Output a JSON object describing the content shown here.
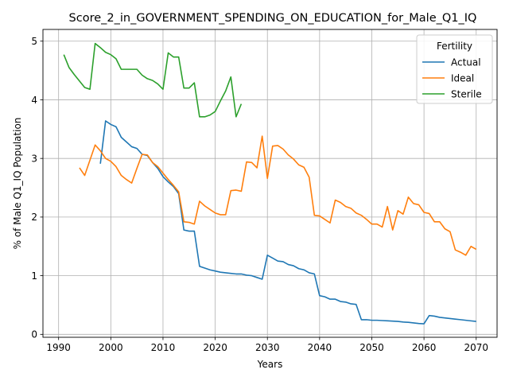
{
  "chart_data": {
    "type": "line",
    "title": "Score_2_in_GOVERNMENT_SPENDING_ON_EDUCATION_for_Male_Q1_IQ",
    "xlabel": "Years",
    "ylabel": "% of Male Q1_IQ Population",
    "xlim": [
      1987,
      2074
    ],
    "ylim": [
      -0.05,
      5.2
    ],
    "xticks": [
      1990,
      2000,
      2010,
      2020,
      2030,
      2040,
      2050,
      2060,
      2070
    ],
    "yticks": [
      0,
      1,
      2,
      3,
      4,
      5
    ],
    "grid": true,
    "legend": {
      "title": "Fertility",
      "position": "top-right"
    },
    "series": [
      {
        "name": "Actual",
        "color": "#1f77b4",
        "x": [
          1998,
          1999,
          2000,
          2001,
          2002,
          2003,
          2004,
          2005,
          2006,
          2007,
          2008,
          2009,
          2010,
          2011,
          2012,
          2013,
          2014,
          2015,
          2016,
          2017,
          2018,
          2019,
          2020,
          2021,
          2022,
          2023,
          2024,
          2025,
          2026,
          2027,
          2028,
          2029,
          2030,
          2031,
          2032,
          2033,
          2034,
          2035,
          2036,
          2037,
          2038,
          2039,
          2040,
          2041,
          2042,
          2043,
          2044,
          2045,
          2046,
          2047,
          2048,
          2049,
          2050,
          2051,
          2052,
          2053,
          2054,
          2055,
          2056,
          2057,
          2058,
          2059,
          2060,
          2061,
          2062,
          2063,
          2064,
          2065,
          2066,
          2067,
          2068,
          2069,
          2070
        ],
        "y": [
          2.91,
          3.64,
          3.58,
          3.54,
          3.36,
          3.28,
          3.2,
          3.17,
          3.07,
          3.05,
          2.93,
          2.83,
          2.69,
          2.6,
          2.52,
          2.4,
          1.78,
          1.76,
          1.76,
          1.16,
          1.13,
          1.1,
          1.08,
          1.06,
          1.05,
          1.04,
          1.03,
          1.03,
          1.01,
          1.0,
          0.97,
          0.94,
          1.35,
          1.3,
          1.25,
          1.24,
          1.19,
          1.17,
          1.12,
          1.1,
          1.05,
          1.03,
          0.66,
          0.64,
          0.6,
          0.6,
          0.56,
          0.55,
          0.52,
          0.51,
          0.25,
          0.25,
          0.24,
          0.24,
          0.235,
          0.23,
          0.225,
          0.22,
          0.21,
          0.205,
          0.195,
          0.185,
          0.18,
          0.32,
          0.31,
          0.29,
          0.28,
          0.27,
          0.26,
          0.25,
          0.24,
          0.23,
          0.22
        ]
      },
      {
        "name": "Ideal",
        "color": "#ff7f0e",
        "x": [
          1994,
          1995,
          1996,
          1997,
          1998,
          1999,
          2000,
          2001,
          2002,
          2003,
          2004,
          2005,
          2006,
          2007,
          2008,
          2009,
          2010,
          2011,
          2012,
          2013,
          2014,
          2015,
          2016,
          2017,
          2018,
          2019,
          2020,
          2021,
          2022,
          2023,
          2024,
          2025,
          2026,
          2027,
          2028,
          2029,
          2030,
          2031,
          2032,
          2033,
          2034,
          2035,
          2036,
          2037,
          2038,
          2039,
          2040,
          2041,
          2042,
          2043,
          2044,
          2045,
          2046,
          2047,
          2048,
          2049,
          2050,
          2051,
          2052,
          2053,
          2054,
          2055,
          2056,
          2057,
          2058,
          2059,
          2060,
          2061,
          2062,
          2063,
          2064,
          2065,
          2066,
          2067,
          2068,
          2069,
          2070
        ],
        "y": [
          2.84,
          2.71,
          2.97,
          3.23,
          3.13,
          3.0,
          2.95,
          2.86,
          2.71,
          2.64,
          2.58,
          2.83,
          3.07,
          3.06,
          2.93,
          2.86,
          2.75,
          2.64,
          2.54,
          2.43,
          1.92,
          1.91,
          1.88,
          2.27,
          2.19,
          2.13,
          2.07,
          2.04,
          2.04,
          2.45,
          2.46,
          2.44,
          2.94,
          2.93,
          2.84,
          3.38,
          2.66,
          3.21,
          3.22,
          3.16,
          3.06,
          2.99,
          2.89,
          2.85,
          2.68,
          2.03,
          2.02,
          1.96,
          1.9,
          2.29,
          2.25,
          2.18,
          2.15,
          2.07,
          2.03,
          1.96,
          1.88,
          1.88,
          1.83,
          2.18,
          1.78,
          2.11,
          2.05,
          2.34,
          2.23,
          2.21,
          2.08,
          2.06,
          1.92,
          1.92,
          1.8,
          1.75,
          1.44,
          1.4,
          1.35,
          1.5,
          1.45
        ]
      },
      {
        "name": "Sterile",
        "color": "#2ca02c",
        "x": [
          1991,
          1992,
          1993,
          1994,
          1995,
          1996,
          1997,
          1998,
          1999,
          2000,
          2001,
          2002,
          2003,
          2004,
          2005,
          2006,
          2007,
          2008,
          2009,
          2010,
          2011,
          2012,
          2013,
          2014,
          2015,
          2016,
          2017,
          2018,
          2019,
          2020,
          2021,
          2022,
          2023,
          2024,
          2025
        ],
        "y": [
          4.77,
          4.55,
          4.43,
          4.32,
          4.21,
          4.18,
          4.96,
          4.89,
          4.81,
          4.77,
          4.7,
          4.52,
          4.52,
          4.52,
          4.52,
          4.42,
          4.36,
          4.33,
          4.27,
          4.18,
          4.8,
          4.73,
          4.73,
          4.2,
          4.2,
          4.29,
          3.71,
          3.71,
          3.74,
          3.8,
          3.98,
          4.15,
          4.39,
          3.71,
          3.93
        ]
      }
    ]
  }
}
